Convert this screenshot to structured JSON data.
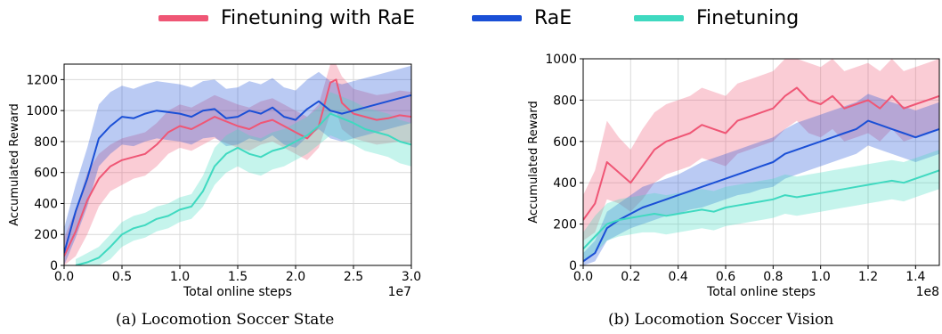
{
  "legend": [
    {
      "name": "Finetuning with RaE",
      "color": "#ef5675"
    },
    {
      "name": "RaE",
      "color": "#1a4fd6"
    },
    {
      "name": "Finetuning",
      "color": "#3fd9c0"
    }
  ],
  "captions": {
    "left": "(a) Locomotion Soccer State",
    "right": "(b) Locomotion Soccer Vision"
  },
  "chart_data": [
    {
      "type": "line",
      "title": "",
      "xlabel": "Total online steps",
      "ylabel": "Accumulated Reward",
      "x_offset_label": "1e7",
      "xlim": [
        0,
        3.0
      ],
      "ylim": [
        0,
        1300
      ],
      "xticks": [
        "0.0",
        "0.5",
        "1.0",
        "1.5",
        "2.0",
        "2.5",
        "3.0"
      ],
      "yticks": [
        "0",
        "200",
        "400",
        "600",
        "800",
        "1000",
        "1200"
      ],
      "grid": true,
      "series": [
        {
          "name": "Finetuning with RaE",
          "color": "#ef5675",
          "x": [
            0,
            0.1,
            0.2,
            0.3,
            0.4,
            0.5,
            0.6,
            0.7,
            0.8,
            0.9,
            1.0,
            1.1,
            1.2,
            1.3,
            1.4,
            1.5,
            1.6,
            1.7,
            1.8,
            1.9,
            2.0,
            2.1,
            2.2,
            2.3,
            2.35,
            2.4,
            2.5,
            2.6,
            2.7,
            2.8,
            2.9,
            3.0
          ],
          "y": [
            60,
            220,
            420,
            560,
            640,
            680,
            700,
            720,
            780,
            860,
            900,
            880,
            920,
            960,
            930,
            900,
            880,
            920,
            940,
            900,
            860,
            820,
            900,
            1180,
            1200,
            1050,
            980,
            960,
            940,
            950,
            970,
            960
          ],
          "lower": [
            0,
            60,
            200,
            380,
            480,
            520,
            560,
            580,
            640,
            720,
            760,
            740,
            780,
            820,
            790,
            760,
            740,
            780,
            800,
            760,
            720,
            680,
            760,
            980,
            1000,
            880,
            820,
            800,
            780,
            790,
            800,
            790
          ],
          "upper": [
            180,
            360,
            600,
            720,
            780,
            820,
            840,
            860,
            920,
            1000,
            1040,
            1020,
            1060,
            1100,
            1070,
            1040,
            1020,
            1060,
            1080,
            1040,
            1000,
            960,
            1040,
            1300,
            1300,
            1220,
            1140,
            1120,
            1100,
            1110,
            1130,
            1120
          ]
        },
        {
          "name": "RaE",
          "color": "#1a4fd6",
          "x": [
            0,
            0.1,
            0.2,
            0.3,
            0.4,
            0.5,
            0.6,
            0.7,
            0.8,
            0.9,
            1.0,
            1.1,
            1.2,
            1.3,
            1.4,
            1.5,
            1.6,
            1.7,
            1.8,
            1.9,
            2.0,
            2.1,
            2.2,
            2.3,
            2.4,
            2.5,
            2.6,
            2.7,
            2.8,
            2.9,
            3.0
          ],
          "y": [
            80,
            350,
            560,
            820,
            900,
            960,
            950,
            980,
            1000,
            990,
            980,
            960,
            1000,
            1010,
            950,
            960,
            1000,
            980,
            1020,
            960,
            940,
            1010,
            1060,
            1000,
            980,
            1000,
            1020,
            1040,
            1060,
            1080,
            1100
          ],
          "lower": [
            0,
            180,
            380,
            640,
            720,
            780,
            770,
            800,
            820,
            810,
            800,
            780,
            820,
            830,
            770,
            780,
            820,
            800,
            840,
            780,
            760,
            830,
            880,
            820,
            800,
            820,
            840,
            860,
            880,
            900,
            920
          ],
          "upper": [
            240,
            520,
            760,
            1040,
            1120,
            1160,
            1140,
            1170,
            1190,
            1180,
            1170,
            1150,
            1190,
            1200,
            1140,
            1150,
            1190,
            1170,
            1210,
            1150,
            1130,
            1200,
            1250,
            1190,
            1170,
            1190,
            1210,
            1230,
            1250,
            1270,
            1290
          ]
        },
        {
          "name": "Finetuning",
          "color": "#3fd9c0",
          "x": [
            0.1,
            0.2,
            0.3,
            0.4,
            0.5,
            0.6,
            0.7,
            0.8,
            0.9,
            1.0,
            1.1,
            1.2,
            1.3,
            1.4,
            1.5,
            1.6,
            1.7,
            1.8,
            1.9,
            2.0,
            2.1,
            2.2,
            2.3,
            2.4,
            2.5,
            2.6,
            2.7,
            2.8,
            2.9,
            3.0
          ],
          "y": [
            0,
            20,
            50,
            120,
            200,
            240,
            260,
            300,
            320,
            360,
            380,
            480,
            640,
            720,
            760,
            720,
            700,
            740,
            760,
            800,
            840,
            900,
            980,
            950,
            920,
            880,
            860,
            840,
            800,
            780
          ],
          "lower": [
            0,
            0,
            0,
            40,
            120,
            160,
            180,
            220,
            240,
            280,
            300,
            380,
            520,
            600,
            640,
            600,
            580,
            620,
            640,
            680,
            720,
            780,
            840,
            810,
            780,
            740,
            720,
            700,
            660,
            640
          ],
          "upper": [
            40,
            80,
            120,
            200,
            280,
            320,
            340,
            380,
            400,
            440,
            460,
            580,
            760,
            840,
            880,
            840,
            820,
            860,
            880,
            920,
            960,
            1020,
            1120,
            1090,
            1060,
            1020,
            1000,
            980,
            940,
            920
          ]
        }
      ]
    },
    {
      "type": "line",
      "title": "",
      "xlabel": "Total online steps",
      "ylabel": "Accumulated Reward",
      "x_offset_label": "1e8",
      "xlim": [
        0,
        1.5
      ],
      "ylim": [
        0,
        1000
      ],
      "xticks": [
        "0.0",
        "0.2",
        "0.4",
        "0.6",
        "0.8",
        "1.0",
        "1.2",
        "1.4"
      ],
      "yticks": [
        "0",
        "200",
        "400",
        "600",
        "800",
        "1000"
      ],
      "grid": true,
      "series": [
        {
          "name": "Finetuning with RaE",
          "color": "#ef5675",
          "x": [
            0,
            0.05,
            0.1,
            0.15,
            0.2,
            0.25,
            0.3,
            0.35,
            0.4,
            0.45,
            0.5,
            0.55,
            0.6,
            0.65,
            0.7,
            0.75,
            0.8,
            0.85,
            0.9,
            0.95,
            1.0,
            1.05,
            1.1,
            1.15,
            1.2,
            1.25,
            1.3,
            1.35,
            1.4,
            1.45,
            1.5
          ],
          "y": [
            220,
            300,
            500,
            450,
            400,
            480,
            560,
            600,
            620,
            640,
            680,
            660,
            640,
            700,
            720,
            740,
            760,
            820,
            860,
            800,
            780,
            820,
            760,
            780,
            800,
            760,
            820,
            760,
            780,
            800,
            820
          ],
          "lower": [
            120,
            160,
            320,
            300,
            260,
            320,
            400,
            440,
            460,
            480,
            520,
            500,
            480,
            540,
            560,
            580,
            600,
            660,
            700,
            640,
            620,
            660,
            600,
            620,
            640,
            600,
            660,
            600,
            620,
            640,
            660
          ],
          "upper": [
            340,
            460,
            700,
            620,
            560,
            660,
            740,
            780,
            800,
            820,
            860,
            840,
            820,
            880,
            900,
            920,
            940,
            1000,
            1000,
            980,
            960,
            1000,
            940,
            960,
            980,
            940,
            1000,
            940,
            960,
            980,
            1000
          ]
        },
        {
          "name": "RaE",
          "color": "#1a4fd6",
          "x": [
            0,
            0.05,
            0.1,
            0.15,
            0.2,
            0.25,
            0.3,
            0.35,
            0.4,
            0.45,
            0.5,
            0.55,
            0.6,
            0.65,
            0.7,
            0.75,
            0.8,
            0.85,
            0.9,
            0.95,
            1.0,
            1.05,
            1.1,
            1.15,
            1.2,
            1.25,
            1.3,
            1.35,
            1.4,
            1.45,
            1.5
          ],
          "y": [
            20,
            60,
            180,
            220,
            250,
            280,
            300,
            320,
            340,
            360,
            380,
            400,
            420,
            440,
            460,
            480,
            500,
            540,
            560,
            580,
            600,
            620,
            640,
            660,
            700,
            680,
            660,
            640,
            620,
            640,
            660
          ],
          "lower": [
            0,
            20,
            120,
            150,
            180,
            200,
            220,
            240,
            250,
            270,
            280,
            300,
            320,
            340,
            350,
            370,
            380,
            420,
            440,
            460,
            480,
            500,
            520,
            540,
            580,
            560,
            540,
            520,
            500,
            520,
            540
          ],
          "upper": [
            60,
            120,
            260,
            300,
            340,
            380,
            400,
            420,
            440,
            470,
            500,
            520,
            540,
            560,
            580,
            600,
            620,
            660,
            690,
            710,
            730,
            750,
            770,
            790,
            830,
            810,
            790,
            770,
            750,
            770,
            790
          ]
        },
        {
          "name": "Finetuning",
          "color": "#3fd9c0",
          "x": [
            0,
            0.05,
            0.1,
            0.15,
            0.2,
            0.25,
            0.3,
            0.35,
            0.4,
            0.45,
            0.5,
            0.55,
            0.6,
            0.65,
            0.7,
            0.75,
            0.8,
            0.85,
            0.9,
            0.95,
            1.0,
            1.05,
            1.1,
            1.15,
            1.2,
            1.25,
            1.3,
            1.35,
            1.4,
            1.45,
            1.5
          ],
          "y": [
            80,
            140,
            200,
            220,
            230,
            240,
            250,
            240,
            250,
            260,
            270,
            260,
            280,
            290,
            300,
            310,
            320,
            340,
            330,
            340,
            350,
            360,
            370,
            380,
            390,
            400,
            410,
            400,
            420,
            440,
            460
          ],
          "lower": [
            20,
            60,
            120,
            140,
            150,
            160,
            160,
            150,
            160,
            170,
            180,
            170,
            190,
            200,
            210,
            220,
            230,
            250,
            240,
            250,
            260,
            270,
            280,
            290,
            300,
            310,
            320,
            310,
            330,
            350,
            370
          ],
          "upper": [
            160,
            240,
            300,
            320,
            330,
            340,
            350,
            340,
            350,
            360,
            370,
            360,
            380,
            390,
            400,
            410,
            420,
            440,
            430,
            440,
            450,
            460,
            470,
            480,
            490,
            500,
            510,
            500,
            520,
            540,
            560
          ]
        }
      ]
    }
  ]
}
